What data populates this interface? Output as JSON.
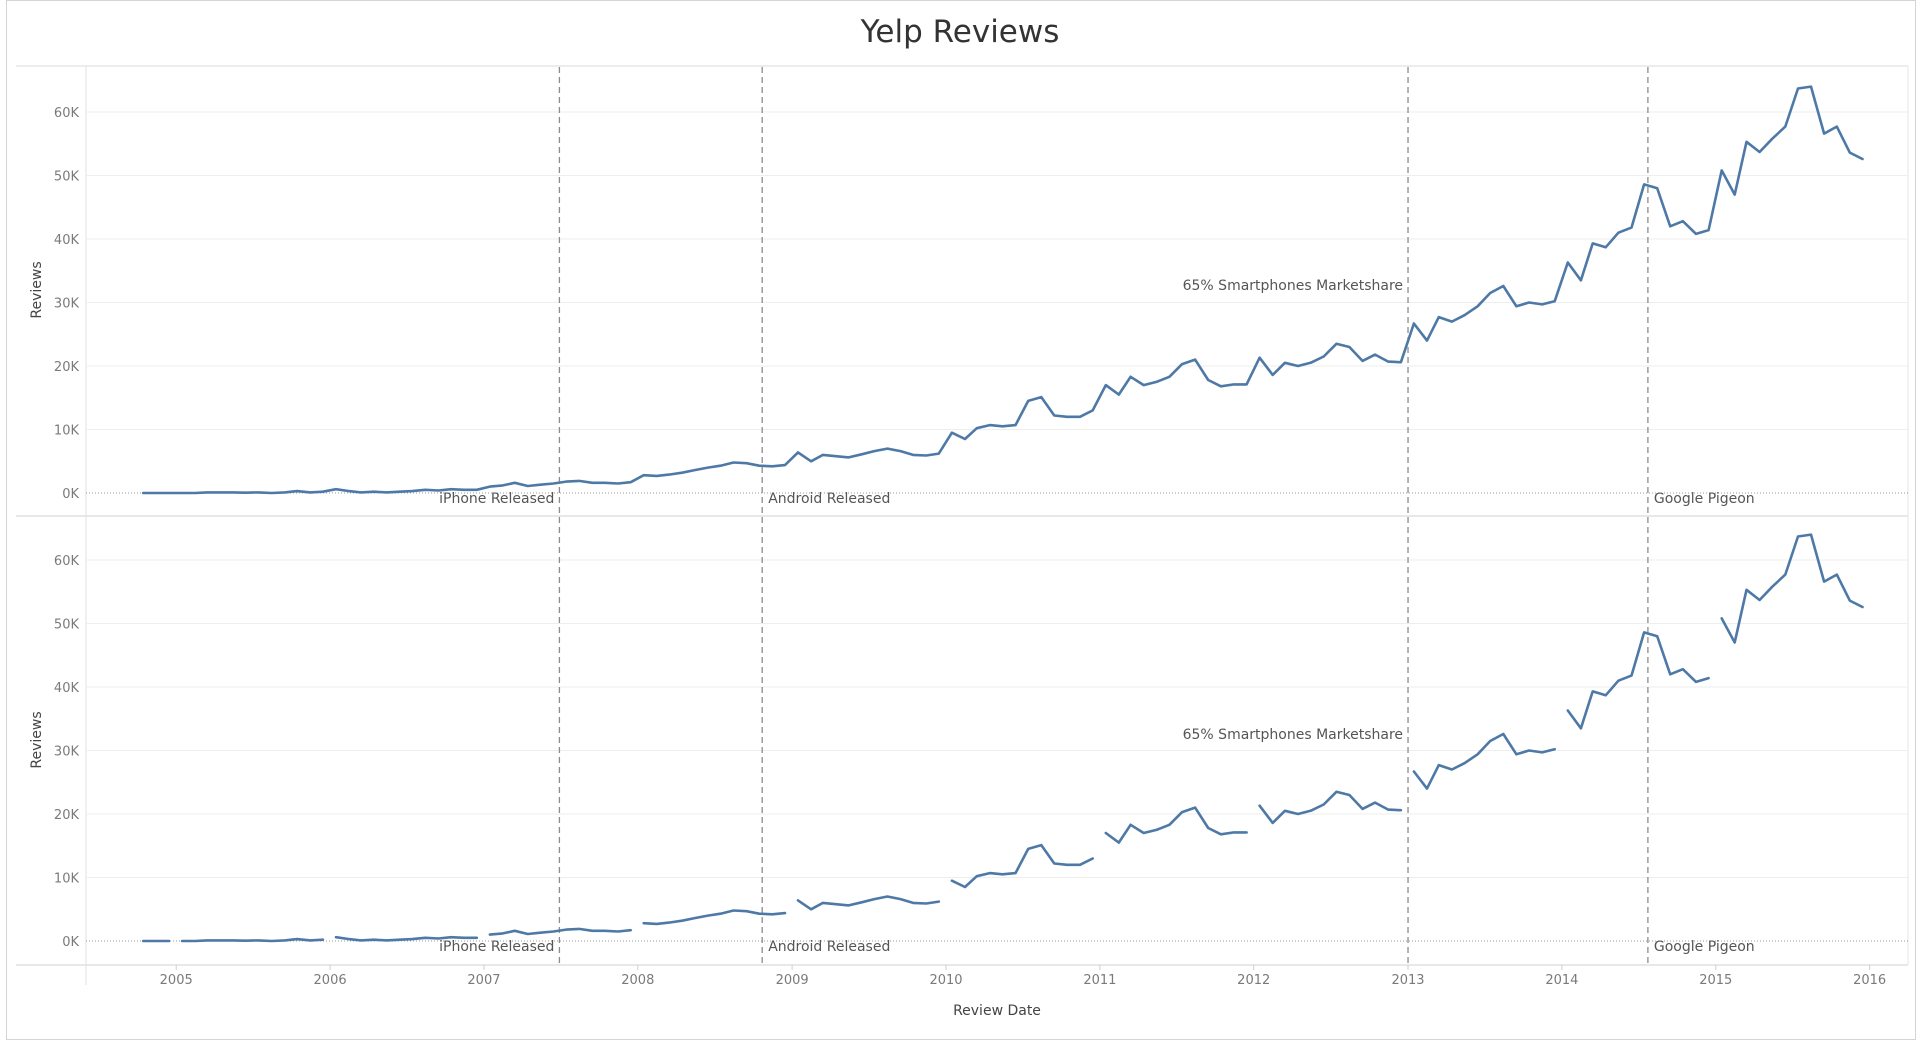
{
  "chart_data": {
    "type": "line",
    "title": "Yelp Reviews",
    "xlabel": "Review Date",
    "ylabel": "Reviews",
    "x_domain": [
      "2004-06-01",
      "2016-04-01"
    ],
    "ylim": [
      0,
      68000
    ],
    "x_tick_labels": [
      "2005",
      "2006",
      "2007",
      "2008",
      "2009",
      "2010",
      "2011",
      "2012",
      "2013",
      "2014",
      "2015",
      "2016"
    ],
    "y_tick_values": [
      0,
      10000,
      20000,
      30000,
      40000,
      50000,
      60000
    ],
    "y_tick_labels": [
      "0K",
      "10K",
      "20K",
      "30K",
      "40K",
      "50K",
      "60K"
    ],
    "grid": "horizontal",
    "color": "#4e79a7",
    "reference_lines": [
      {
        "date": "2007-06-29",
        "label": "iPhone Released",
        "label_side": "left",
        "label_pos": "bottom"
      },
      {
        "date": "2008-10-22",
        "label": "Android Released",
        "label_side": "right",
        "label_pos": "bottom"
      },
      {
        "date": "2013-01-01",
        "label": "65% Smartphones Marketshare",
        "label_side": "left",
        "label_pos": "upper"
      },
      {
        "date": "2014-07-24",
        "label": "Google Pigeon",
        "label_side": "right",
        "label_pos": "bottom"
      }
    ],
    "x": [
      "2004-10",
      "2004-11",
      "2004-12",
      "2005-01",
      "2005-02",
      "2005-03",
      "2005-04",
      "2005-05",
      "2005-06",
      "2005-07",
      "2005-08",
      "2005-09",
      "2005-10",
      "2005-11",
      "2005-12",
      "2006-01",
      "2006-02",
      "2006-03",
      "2006-04",
      "2006-05",
      "2006-06",
      "2006-07",
      "2006-08",
      "2006-09",
      "2006-10",
      "2006-11",
      "2006-12",
      "2007-01",
      "2007-02",
      "2007-03",
      "2007-04",
      "2007-05",
      "2007-06",
      "2007-07",
      "2007-08",
      "2007-09",
      "2007-10",
      "2007-11",
      "2007-12",
      "2008-01",
      "2008-02",
      "2008-03",
      "2008-04",
      "2008-05",
      "2008-06",
      "2008-07",
      "2008-08",
      "2008-09",
      "2008-10",
      "2008-11",
      "2008-12",
      "2009-01",
      "2009-02",
      "2009-03",
      "2009-04",
      "2009-05",
      "2009-06",
      "2009-07",
      "2009-08",
      "2009-09",
      "2009-10",
      "2009-11",
      "2009-12",
      "2010-01",
      "2010-02",
      "2010-03",
      "2010-04",
      "2010-05",
      "2010-06",
      "2010-07",
      "2010-08",
      "2010-09",
      "2010-10",
      "2010-11",
      "2010-12",
      "2011-01",
      "2011-02",
      "2011-03",
      "2011-04",
      "2011-05",
      "2011-06",
      "2011-07",
      "2011-08",
      "2011-09",
      "2011-10",
      "2011-11",
      "2011-12",
      "2012-01",
      "2012-02",
      "2012-03",
      "2012-04",
      "2012-05",
      "2012-06",
      "2012-07",
      "2012-08",
      "2012-09",
      "2012-10",
      "2012-11",
      "2012-12",
      "2013-01",
      "2013-02",
      "2013-03",
      "2013-04",
      "2013-05",
      "2013-06",
      "2013-07",
      "2013-08",
      "2013-09",
      "2013-10",
      "2013-11",
      "2013-12",
      "2014-01",
      "2014-02",
      "2014-03",
      "2014-04",
      "2014-05",
      "2014-06",
      "2014-07",
      "2014-08",
      "2014-09",
      "2014-10",
      "2014-11",
      "2014-12",
      "2015-01",
      "2015-02",
      "2015-03",
      "2015-04",
      "2015-05",
      "2015-06",
      "2015-07",
      "2015-08",
      "2015-09",
      "2015-10",
      "2015-11",
      "2015-12"
    ],
    "series": [
      {
        "values": [
          0,
          0,
          0,
          0,
          0,
          100,
          100,
          100,
          50,
          100,
          0,
          100,
          300,
          100,
          200,
          600,
          300,
          100,
          200,
          100,
          200,
          300,
          500,
          400,
          600,
          500,
          500,
          1000,
          1200,
          1600,
          1100,
          1300,
          1500,
          1800,
          1900,
          1600,
          1600,
          1500,
          1700,
          2800,
          2700,
          2900,
          3200,
          3600,
          4000,
          4300,
          4800,
          4700,
          4300,
          4200,
          4400,
          6400,
          5000,
          6000,
          5800,
          5600,
          6100,
          6600,
          7000,
          6600,
          6000,
          5900,
          6200,
          9500,
          8500,
          10200,
          10700,
          10500,
          10700,
          14500,
          15100,
          12200,
          12000,
          12000,
          13000,
          17000,
          15500,
          18300,
          17000,
          17500,
          18300,
          20300,
          21000,
          17800,
          16800,
          17100,
          17100,
          21300,
          18600,
          20500,
          20000,
          20500,
          21500,
          23500,
          23000,
          20800,
          21800,
          20700,
          20600,
          26700,
          24000,
          27700,
          27000,
          28000,
          29400,
          31500,
          32600,
          29400,
          30000,
          29700,
          30200,
          36300,
          33500,
          39300,
          38700,
          41000,
          41800,
          48600,
          48000,
          42000,
          42800,
          40800,
          41400,
          50800,
          47000,
          55300,
          53700,
          55800,
          57700,
          63700,
          64000,
          56600,
          57700,
          53600,
          52600
        ]
      }
    ],
    "panel_2_segment_breaks": [
      "2004-12",
      "2005-12",
      "2006-12",
      "2007-12",
      "2008-12",
      "2009-12",
      "2010-12",
      "2011-12",
      "2012-12",
      "2013-12",
      "2014-12"
    ]
  }
}
